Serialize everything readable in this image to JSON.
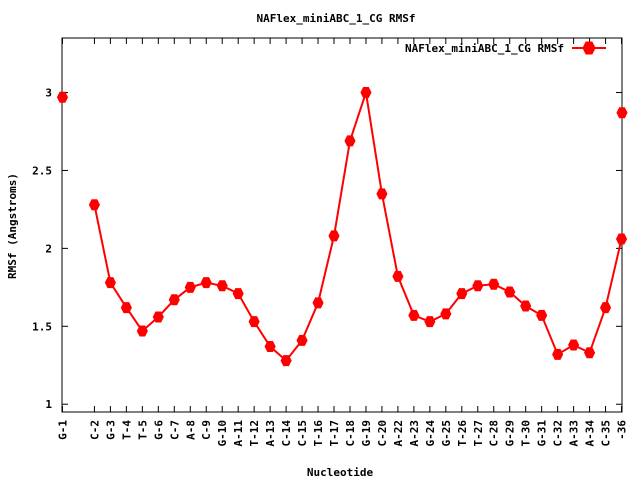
{
  "chart_data": {
    "type": "line",
    "title": "NAFlex_miniABC_1_CG RMSf",
    "xlabel": "Nucleotide",
    "ylabel": "RMSf (Angstroms)",
    "ylim": [
      0.95,
      3.35
    ],
    "yticks": [
      1,
      1.5,
      2,
      2.5,
      3
    ],
    "ytick_labels": [
      "1",
      "1.5",
      "2",
      "2.5",
      "3"
    ],
    "grid": false,
    "legend_position": "top-right",
    "series_color": "#ff0000",
    "x": [
      1,
      2,
      3,
      4,
      5,
      6,
      7,
      8,
      9,
      10,
      11,
      12,
      13,
      14,
      15,
      16,
      17,
      18,
      19,
      20,
      21,
      22,
      23,
      24,
      25,
      26,
      27,
      28,
      29,
      30,
      31,
      32,
      33,
      34,
      35,
      36
    ],
    "xlim": [
      0.97,
      36.03
    ],
    "categories": [
      "G-1",
      "C-2",
      "G-3",
      "T-4",
      "T-5",
      "G-6",
      "C-7",
      "A-8",
      "C-9",
      "G-10",
      "A-11",
      "T-12",
      "A-13",
      "C-14",
      "C-15",
      "T-16",
      "T-17",
      "C-18",
      "G-19",
      "C-20",
      "A-22",
      "A-23",
      "G-24",
      "G-25",
      "T-26",
      "T-27",
      "C-28",
      "G-29",
      "T-30",
      "G-31",
      "C-32",
      "A-33",
      "A-34",
      "C-35",
      "G-36"
    ],
    "category_x": [
      1,
      3,
      4,
      5,
      6,
      7,
      8,
      9,
      10,
      11,
      12,
      13,
      14,
      15,
      16,
      17,
      18,
      19,
      20,
      21,
      22,
      23,
      24,
      25,
      26,
      27,
      28,
      29,
      30,
      31,
      32,
      33,
      34,
      35,
      36
    ],
    "tick_labels_shown": [
      "G-1",
      "C-2",
      "G-3",
      "T-4",
      "T-5",
      "G-6",
      "C-7",
      "A-8",
      "C-9",
      "G-10",
      "A-11",
      "T-12",
      "A-13",
      "C-14",
      "C-15",
      "T-16",
      "T-17",
      "C-18",
      "G-19",
      "C-20",
      "A-22",
      "A-23",
      "G-24",
      "G-25",
      "T-26",
      "T-27",
      "C-28",
      "G-29",
      "T-30",
      "G-31",
      "C-32",
      "A-33",
      "A-34",
      "C-35",
      "-36"
    ],
    "series": [
      {
        "name": "NAFlex_miniABC_1_CG RMSf",
        "segments": [
          {
            "x": [
              1
            ],
            "values": [
              2.97
            ]
          },
          {
            "x": [
              3,
              4,
              5,
              6,
              7,
              8,
              9,
              10,
              11,
              12,
              13,
              14,
              15,
              16,
              17,
              18,
              19,
              20,
              21,
              22,
              23,
              24,
              25,
              26,
              27,
              28,
              29,
              30,
              31,
              32,
              33,
              34,
              35,
              36
            ],
            "values": [
              2.28,
              1.78,
              1.62,
              1.47,
              1.56,
              1.67,
              1.75,
              1.78,
              1.76,
              1.71,
              1.53,
              1.37,
              1.28,
              1.41,
              1.65,
              2.08,
              2.69,
              3.0,
              2.35,
              1.82,
              1.57,
              1.53,
              1.58,
              1.71,
              1.76,
              1.77,
              1.72,
              1.63,
              1.57,
              1.32,
              1.38,
              1.33,
              1.62,
              2.06
            ]
          },
          {
            "x": [
              36.03
            ],
            "values": [
              2.87
            ]
          }
        ]
      }
    ]
  }
}
